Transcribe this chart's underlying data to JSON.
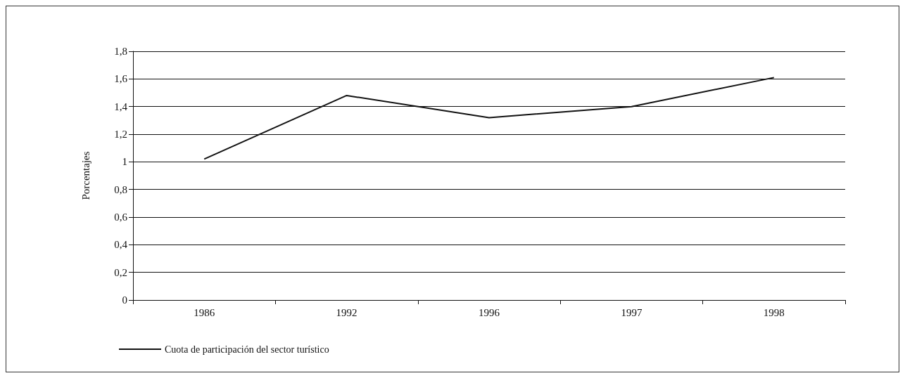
{
  "chart_data": {
    "type": "line",
    "ylabel": "Porcentajes",
    "categories": [
      "1986",
      "1992",
      "1996",
      "1997",
      "1998"
    ],
    "series": [
      {
        "name": "Cuota de participación del sector turístico",
        "color": "#111111",
        "values": [
          1.02,
          1.48,
          1.32,
          1.4,
          1.61
        ]
      }
    ],
    "ylim": [
      0,
      1.8
    ],
    "yticks": [
      0,
      {
        "value": 0.2,
        "label": "0,2"
      },
      {
        "value": 0.4,
        "label": "0,4"
      },
      {
        "value": 0.6,
        "label": "0,6"
      },
      {
        "value": 0.8,
        "label": "0,8"
      },
      1,
      {
        "value": 1.2,
        "label": "1,2"
      },
      {
        "value": 1.4,
        "label": "1,4"
      },
      {
        "value": 1.6,
        "label": "1,6"
      },
      {
        "value": 1.8,
        "label": "1,8"
      }
    ],
    "grid": "y",
    "legend": "bottom left",
    "marker": "none",
    "line_style": "solid"
  }
}
